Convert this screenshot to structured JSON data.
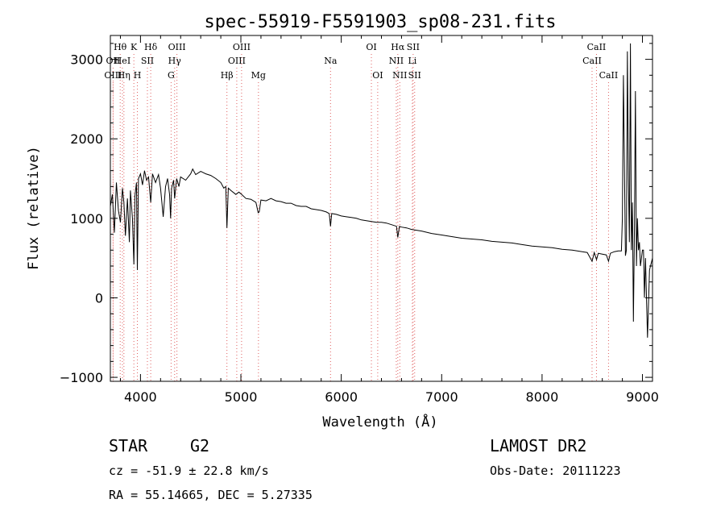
{
  "chart_data": {
    "type": "line",
    "title": "spec-55919-F5591903_sp08-231.fits",
    "xlabel": "Wavelength (Å)",
    "ylabel": "Flux (relative)",
    "xlim": [
      3700,
      9100
    ],
    "ylim": [
      -1050,
      3300
    ],
    "x_ticks": [
      4000,
      5000,
      6000,
      7000,
      8000,
      9000
    ],
    "y_ticks": [
      -1000,
      0,
      1000,
      2000,
      3000
    ],
    "grid": false,
    "series": [
      {
        "x": [
          3700,
          3720,
          3740,
          3760,
          3780,
          3800,
          3820,
          3835,
          3850,
          3870,
          3889,
          3900,
          3920,
          3934,
          3945,
          3960,
          3969,
          3980,
          4000,
          4020,
          4040,
          4060,
          4080,
          4102,
          4120,
          4150,
          4180,
          4200,
          4226,
          4250,
          4270,
          4290,
          4300,
          4310,
          4330,
          4340,
          4360,
          4383,
          4400,
          4450,
          4500,
          4520,
          4550,
          4600,
          4650,
          4700,
          4750,
          4800,
          4830,
          4850,
          4861,
          4875,
          4900,
          4950,
          4980,
          5000,
          5050,
          5100,
          5150,
          5172,
          5183,
          5200,
          5250,
          5300,
          5350,
          5400,
          5450,
          5500,
          5550,
          5600,
          5650,
          5700,
          5750,
          5800,
          5850,
          5880,
          5893,
          5905,
          5950,
          6000,
          6050,
          6100,
          6150,
          6200,
          6250,
          6300,
          6350,
          6400,
          6450,
          6500,
          6550,
          6563,
          6580,
          6600,
          6650,
          6700,
          6750,
          6800,
          6900,
          7000,
          7100,
          7200,
          7300,
          7400,
          7500,
          7600,
          7700,
          7800,
          7900,
          8000,
          8100,
          8200,
          8300,
          8400,
          8450,
          8498,
          8520,
          8542,
          8560,
          8600,
          8640,
          8662,
          8680,
          8720,
          8760,
          8790,
          8800,
          8810,
          8830,
          8840,
          8850,
          8860,
          8870,
          8880,
          8890,
          8900,
          8910,
          8920,
          8930,
          8940,
          8950,
          8960,
          8970,
          8980,
          8990,
          9000,
          9010,
          9020,
          9030,
          9050,
          9070,
          9100
        ],
        "values": [
          1150,
          1300,
          820,
          1450,
          1100,
          950,
          1380,
          1200,
          780,
          1250,
          700,
          1350,
          1000,
          420,
          1280,
          1450,
          350,
          1500,
          1560,
          1420,
          1600,
          1480,
          1520,
          1200,
          1560,
          1450,
          1550,
          1380,
          1020,
          1400,
          1500,
          1300,
          1000,
          1380,
          1480,
          1250,
          1500,
          1400,
          1520,
          1480,
          1560,
          1620,
          1550,
          1590,
          1560,
          1540,
          1500,
          1450,
          1380,
          1400,
          880,
          1380,
          1350,
          1300,
          1330,
          1310,
          1250,
          1240,
          1200,
          1070,
          1080,
          1230,
          1220,
          1250,
          1220,
          1210,
          1190,
          1190,
          1160,
          1150,
          1150,
          1120,
          1110,
          1100,
          1080,
          1060,
          900,
          1060,
          1050,
          1030,
          1020,
          1010,
          1000,
          980,
          970,
          960,
          950,
          950,
          940,
          920,
          900,
          760,
          900,
          890,
          880,
          860,
          850,
          840,
          810,
          790,
          770,
          750,
          740,
          730,
          710,
          700,
          690,
          670,
          650,
          640,
          630,
          610,
          600,
          580,
          570,
          460,
          570,
          480,
          560,
          550,
          540,
          460,
          560,
          580,
          590,
          590,
          1000,
          2800,
          530,
          600,
          3100,
          1500,
          700,
          3200,
          600,
          1200,
          -300,
          900,
          2600,
          400,
          1000,
          600,
          700,
          400,
          500,
          600,
          600,
          0,
          500,
          -500,
          350,
          500
        ]
      }
    ],
    "lines": [
      {
        "label": "Hθ",
        "wl": 3798,
        "row": 1
      },
      {
        "label": "OII",
        "wl": 3727,
        "row": 2
      },
      {
        "label": "HeI",
        "wl": 3820,
        "row": 2
      },
      {
        "label": "OIII",
        "wl": 3727,
        "row": 3
      },
      {
        "label": "Hη",
        "wl": 3835,
        "row": 3
      },
      {
        "label": "K",
        "wl": 3934,
        "row": 1
      },
      {
        "label": "SII",
        "wl": 4069,
        "row": 2
      },
      {
        "label": "H",
        "wl": 3969,
        "row": 3
      },
      {
        "label": "Hδ",
        "wl": 4102,
        "row": 1
      },
      {
        "label": "OIII",
        "wl": 4363,
        "row": 1
      },
      {
        "label": "Hγ",
        "wl": 4340,
        "row": 2
      },
      {
        "label": "G",
        "wl": 4305,
        "row": 3
      },
      {
        "label": "Hβ",
        "wl": 4861,
        "row": 3
      },
      {
        "label": "OIII",
        "wl": 5007,
        "row": 1
      },
      {
        "label": "OIII",
        "wl": 4959,
        "row": 2
      },
      {
        "label": "Mg",
        "wl": 5175,
        "row": 3
      },
      {
        "label": "Na",
        "wl": 5893,
        "row": 2
      },
      {
        "label": "OI",
        "wl": 6300,
        "row": 1
      },
      {
        "label": "OI",
        "wl": 6363,
        "row": 3
      },
      {
        "label": "Hα",
        "wl": 6563,
        "row": 1
      },
      {
        "label": "SII",
        "wl": 6716,
        "row": 1
      },
      {
        "label": "NII",
        "wl": 6548,
        "row": 2
      },
      {
        "label": "Li",
        "wl": 6708,
        "row": 2
      },
      {
        "label": "NII",
        "wl": 6583,
        "row": 3
      },
      {
        "label": "SII",
        "wl": 6731,
        "row": 3
      },
      {
        "label": "CaII",
        "wl": 8542,
        "row": 1
      },
      {
        "label": "CaII",
        "wl": 8498,
        "row": 2
      },
      {
        "label": "CaII",
        "wl": 8662,
        "row": 3
      }
    ]
  },
  "info": {
    "object_class": "STAR",
    "subclass": "G2",
    "survey": "LAMOST DR2",
    "velocity": "cz = -51.9 ± 22.8 km/s",
    "obs_date": "Obs-Date: 20111223",
    "coords": "RA =  55.14665, DEC =   5.27335"
  },
  "colors": {
    "spectrum": "#000000",
    "line_markers": "#e06060",
    "axes": "#000000"
  }
}
